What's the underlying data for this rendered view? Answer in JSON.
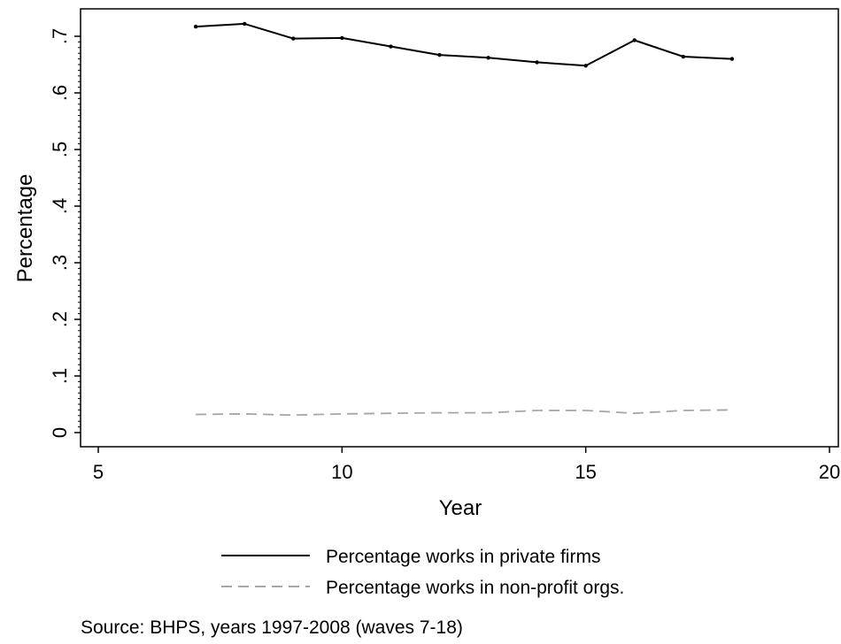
{
  "chart_data": {
    "type": "line",
    "xlabel": "Year",
    "ylabel": "Percentage",
    "xlim": [
      5,
      20
    ],
    "ylim": [
      0,
      0.7
    ],
    "x_ticks": [
      5,
      10,
      15,
      20
    ],
    "x_tick_labels": [
      "5",
      "10",
      "15",
      "20"
    ],
    "y_ticks": [
      0,
      0.1,
      0.2,
      0.3,
      0.4,
      0.5,
      0.6,
      0.7
    ],
    "y_tick_labels": [
      "0",
      ".1",
      ".2",
      ".3",
      ".4",
      ".5",
      ".6",
      ".7"
    ],
    "grid": false,
    "legend_position": "bottom",
    "series": [
      {
        "name": "Percentage works in private firms",
        "line_style": "solid",
        "color": "#000000",
        "markers": true,
        "x": [
          7,
          8,
          9,
          10,
          11,
          12,
          13,
          14,
          15,
          16,
          17,
          18
        ],
        "y": [
          0.717,
          0.722,
          0.696,
          0.697,
          0.682,
          0.667,
          0.662,
          0.654,
          0.648,
          0.693,
          0.664,
          0.66
        ]
      },
      {
        "name": "Percentage works in non-profit orgs.",
        "line_style": "dashed",
        "color": "#a6a6a6",
        "markers": false,
        "x": [
          7,
          8,
          9,
          10,
          11,
          12,
          13,
          14,
          15,
          16,
          17,
          18
        ],
        "y": [
          0.032,
          0.033,
          0.031,
          0.033,
          0.034,
          0.035,
          0.035,
          0.039,
          0.039,
          0.034,
          0.039,
          0.04
        ]
      }
    ],
    "note": "Source: BHPS, years 1997-2008 (waves 7-18)"
  }
}
